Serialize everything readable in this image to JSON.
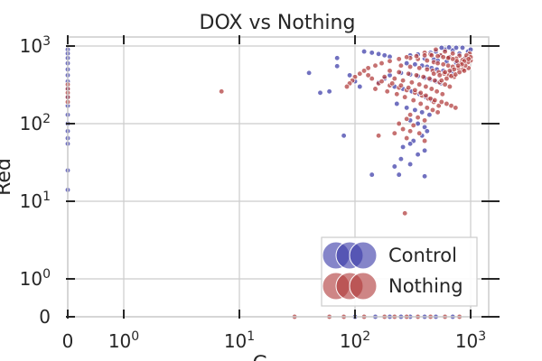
{
  "chart_data": {
    "type": "scatter",
    "title": "DOX vs Nothing",
    "xlabel": "G",
    "ylabel": "Red",
    "x_scale": "symlog",
    "y_scale": "symlog",
    "xlim": [
      0,
      2000
    ],
    "ylim": [
      0,
      2000
    ],
    "x_ticks": [
      {
        "value": 0,
        "label": "0"
      },
      {
        "value": 1,
        "base": "10",
        "exp": "0"
      },
      {
        "value": 10,
        "base": "10",
        "exp": "1"
      },
      {
        "value": 100,
        "base": "10",
        "exp": "2"
      },
      {
        "value": 1000,
        "base": "10",
        "exp": "3"
      }
    ],
    "y_ticks": [
      {
        "value": 0,
        "label": "0"
      },
      {
        "value": 1,
        "base": "10",
        "exp": "0"
      },
      {
        "value": 10,
        "base": "10",
        "exp": "1"
      },
      {
        "value": 100,
        "base": "10",
        "exp": "2"
      },
      {
        "value": 1000,
        "base": "10",
        "exp": "3"
      }
    ],
    "grid": true,
    "legend_position": "lower-right",
    "series": [
      {
        "name": "Control",
        "color": "#3a3aa8",
        "points": [
          [
            600,
            900
          ],
          [
            700,
            880
          ],
          [
            500,
            850
          ],
          [
            450,
            820
          ],
          [
            800,
            800
          ],
          [
            350,
            780
          ],
          [
            300,
            760
          ],
          [
            550,
            740
          ],
          [
            650,
            720
          ],
          [
            900,
            700
          ],
          [
            400,
            690
          ],
          [
            480,
            670
          ],
          [
            520,
            650
          ],
          [
            620,
            630
          ],
          [
            750,
            610
          ],
          [
            280,
            600
          ],
          [
            330,
            580
          ],
          [
            380,
            560
          ],
          [
            420,
            540
          ],
          [
            460,
            520
          ],
          [
            510,
            500
          ],
          [
            580,
            480
          ],
          [
            680,
            460
          ],
          [
            250,
            450
          ],
          [
            300,
            430
          ],
          [
            350,
            410
          ],
          [
            400,
            390
          ],
          [
            450,
            370
          ],
          [
            500,
            350
          ],
          [
            550,
            330
          ],
          [
            200,
            420
          ],
          [
            180,
            380
          ],
          [
            160,
            340
          ],
          [
            220,
            300
          ],
          [
            260,
            280
          ],
          [
            310,
            260
          ],
          [
            360,
            240
          ],
          [
            410,
            220
          ],
          [
            460,
            200
          ],
          [
            230,
            180
          ],
          [
            280,
            160
          ],
          [
            330,
            150
          ],
          [
            380,
            140
          ],
          [
            440,
            130
          ],
          [
            300,
            110
          ],
          [
            350,
            100
          ],
          [
            400,
            90
          ],
          [
            420,
            80
          ],
          [
            380,
            70
          ],
          [
            320,
            60
          ],
          [
            300,
            55
          ],
          [
            260,
            50
          ],
          [
            400,
            45
          ],
          [
            350,
            40
          ],
          [
            250,
            35
          ],
          [
            300,
            30
          ],
          [
            220,
            28
          ],
          [
            140,
            22
          ],
          [
            240,
            22
          ],
          [
            400,
            21
          ],
          [
            80,
            70
          ],
          [
            70,
            700
          ],
          [
            70,
            550
          ],
          [
            90,
            420
          ],
          [
            100,
            350
          ],
          [
            110,
            300
          ],
          [
            60,
            260
          ],
          [
            50,
            250
          ],
          [
            40,
            450
          ],
          [
            120,
            850
          ],
          [
            140,
            820
          ],
          [
            160,
            790
          ],
          [
            180,
            760
          ],
          [
            200,
            730
          ],
          [
            950,
            850
          ],
          [
            850,
            950
          ],
          [
            1000,
            900
          ],
          [
            750,
            950
          ],
          [
            650,
            960
          ],
          [
            560,
            950
          ],
          [
            0,
            900
          ],
          [
            0,
            800
          ],
          [
            0,
            700
          ],
          [
            0,
            600
          ],
          [
            0,
            500
          ],
          [
            0,
            420
          ],
          [
            0,
            350
          ],
          [
            0,
            280
          ],
          [
            0,
            220
          ],
          [
            0,
            170
          ],
          [
            0,
            130
          ],
          [
            0,
            100
          ],
          [
            0,
            80
          ],
          [
            0,
            65
          ],
          [
            0,
            55
          ],
          [
            0,
            25
          ],
          [
            0,
            14
          ],
          [
            100,
            0
          ],
          [
            150,
            0
          ],
          [
            200,
            0
          ],
          [
            250,
            0
          ],
          [
            300,
            0
          ],
          [
            400,
            0
          ],
          [
            500,
            0
          ],
          [
            700,
            0
          ]
        ]
      },
      {
        "name": "Nothing",
        "color": "#b03a3a",
        "points": [
          [
            500,
            900
          ],
          [
            600,
            850
          ],
          [
            700,
            800
          ],
          [
            800,
            750
          ],
          [
            900,
            700
          ],
          [
            1000,
            650
          ],
          [
            400,
            820
          ],
          [
            450,
            780
          ],
          [
            550,
            760
          ],
          [
            650,
            720
          ],
          [
            750,
            690
          ],
          [
            850,
            660
          ],
          [
            950,
            620
          ],
          [
            300,
            700
          ],
          [
            350,
            680
          ],
          [
            420,
            650
          ],
          [
            480,
            620
          ],
          [
            520,
            600
          ],
          [
            580,
            580
          ],
          [
            640,
            560
          ],
          [
            700,
            540
          ],
          [
            780,
            520
          ],
          [
            860,
            500
          ],
          [
            250,
            560
          ],
          [
            300,
            540
          ],
          [
            360,
            520
          ],
          [
            420,
            500
          ],
          [
            470,
            480
          ],
          [
            530,
            460
          ],
          [
            590,
            440
          ],
          [
            650,
            420
          ],
          [
            720,
            400
          ],
          [
            200,
            480
          ],
          [
            240,
            460
          ],
          [
            290,
            440
          ],
          [
            340,
            420
          ],
          [
            390,
            400
          ],
          [
            440,
            380
          ],
          [
            490,
            360
          ],
          [
            540,
            340
          ],
          [
            600,
            320
          ],
          [
            660,
            300
          ],
          [
            180,
            400
          ],
          [
            220,
            380
          ],
          [
            260,
            360
          ],
          [
            310,
            340
          ],
          [
            360,
            320
          ],
          [
            410,
            300
          ],
          [
            460,
            280
          ],
          [
            510,
            260
          ],
          [
            570,
            240
          ],
          [
            160,
            330
          ],
          [
            200,
            310
          ],
          [
            240,
            290
          ],
          [
            280,
            270
          ],
          [
            330,
            250
          ],
          [
            380,
            230
          ],
          [
            430,
            210
          ],
          [
            480,
            190
          ],
          [
            530,
            170
          ],
          [
            150,
            280
          ],
          [
            190,
            260
          ],
          [
            230,
            240
          ],
          [
            270,
            220
          ],
          [
            320,
            200
          ],
          [
            370,
            180
          ],
          [
            420,
            160
          ],
          [
            470,
            150
          ],
          [
            520,
            140
          ],
          [
            300,
            130
          ],
          [
            350,
            120
          ],
          [
            280,
            115
          ],
          [
            400,
            110
          ],
          [
            240,
            100
          ],
          [
            320,
            95
          ],
          [
            260,
            85
          ],
          [
            300,
            80
          ],
          [
            360,
            75
          ],
          [
            220,
            75
          ],
          [
            160,
            70
          ],
          [
            280,
            65
          ],
          [
            400,
            60
          ],
          [
            270,
            7
          ],
          [
            7,
            260
          ],
          [
            130,
            420
          ],
          [
            140,
            380
          ],
          [
            170,
            350
          ],
          [
            210,
            330
          ],
          [
            250,
            310
          ],
          [
            290,
            290
          ],
          [
            330,
            270
          ],
          [
            370,
            250
          ],
          [
            410,
            230
          ],
          [
            450,
            210
          ],
          [
            490,
            200
          ],
          [
            560,
            190
          ],
          [
            620,
            180
          ],
          [
            680,
            170
          ],
          [
            740,
            160
          ],
          [
            560,
            360
          ],
          [
            620,
            380
          ],
          [
            680,
            410
          ],
          [
            740,
            430
          ],
          [
            800,
            460
          ],
          [
            880,
            480
          ],
          [
            960,
            520
          ],
          [
            900,
            560
          ],
          [
            820,
            600
          ],
          [
            760,
            640
          ],
          [
            700,
            680
          ],
          [
            640,
            700
          ],
          [
            580,
            720
          ],
          [
            520,
            740
          ],
          [
            460,
            760
          ],
          [
            400,
            760
          ],
          [
            340,
            740
          ],
          [
            280,
            720
          ],
          [
            240,
            680
          ],
          [
            200,
            640
          ],
          [
            170,
            600
          ],
          [
            150,
            560
          ],
          [
            130,
            520
          ],
          [
            120,
            480
          ],
          [
            110,
            440
          ],
          [
            100,
            400
          ],
          [
            95,
            360
          ],
          [
            90,
            330
          ],
          [
            85,
            300
          ],
          [
            980,
            800
          ],
          [
            920,
            760
          ],
          [
            1000,
            720
          ],
          [
            960,
            680
          ],
          [
            880,
            640
          ],
          [
            840,
            580
          ],
          [
            780,
            560
          ],
          [
            720,
            500
          ],
          [
            660,
            480
          ],
          [
            600,
            460
          ],
          [
            540,
            420
          ],
          [
            480,
            440
          ],
          [
            0,
            320
          ],
          [
            0,
            280
          ],
          [
            0,
            250
          ],
          [
            0,
            220
          ],
          [
            0,
            190
          ],
          [
            30,
            0
          ],
          [
            60,
            0
          ],
          [
            80,
            0
          ],
          [
            120,
            0
          ],
          [
            180,
            0
          ],
          [
            220,
            0
          ],
          [
            280,
            0
          ],
          [
            350,
            0
          ],
          [
            450,
            0
          ],
          [
            600,
            0
          ],
          [
            800,
            0
          ]
        ]
      }
    ]
  }
}
